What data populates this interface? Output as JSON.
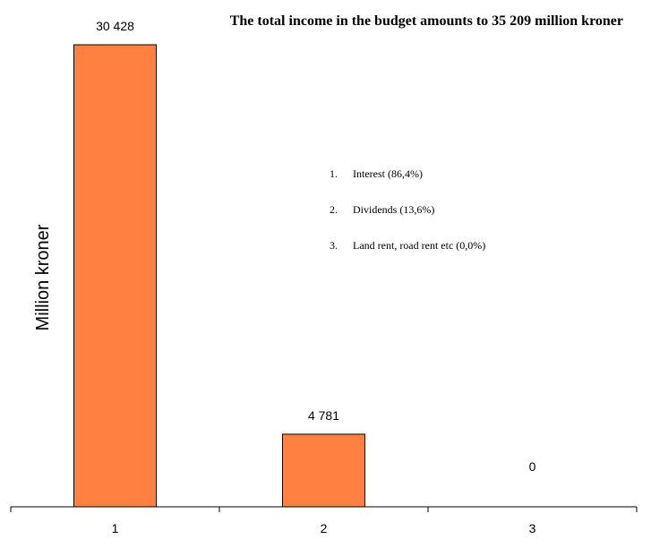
{
  "chart_data": {
    "type": "bar",
    "title": "The total income in the budget amounts to 35 209 million kroner",
    "ylabel": "Million kroner",
    "xlabel": "",
    "categories": [
      "1",
      "2",
      "3"
    ],
    "values": [
      30428,
      4781,
      0
    ],
    "value_labels": [
      "30 428",
      "4 781",
      "0"
    ],
    "ylim": [
      0,
      30428
    ],
    "bar_color": "#ff8040",
    "grid": false,
    "legend": [
      {
        "number": "1.",
        "text": "Interest (86,4%)"
      },
      {
        "number": "2.",
        "text": "Dividends (13,6%)"
      },
      {
        "number": "3.",
        "text": "Land rent, road rent etc (0,0%)"
      }
    ]
  }
}
